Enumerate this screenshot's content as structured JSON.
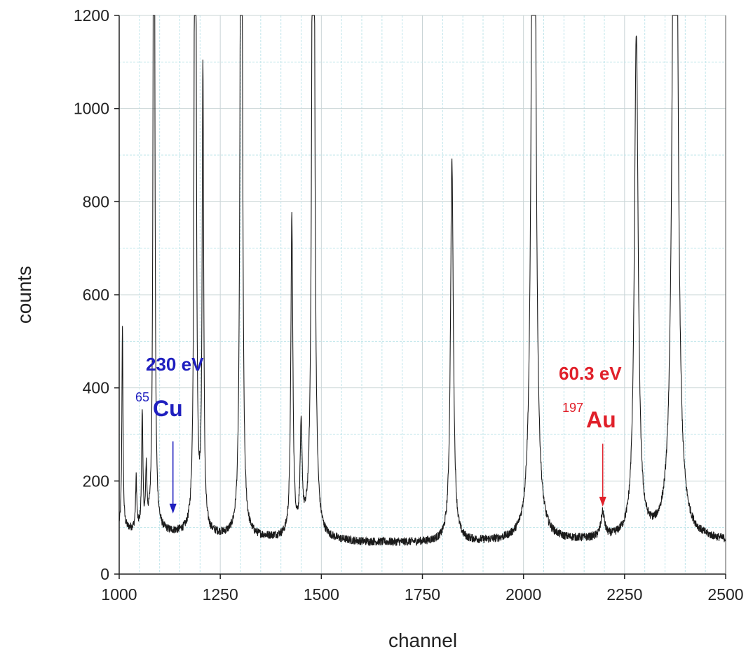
{
  "chart_data": {
    "type": "line",
    "xlabel": "channel",
    "ylabel": "counts",
    "xlim": [
      1000,
      2500
    ],
    "ylim": [
      0,
      1200
    ],
    "x_ticks": [
      1000,
      1250,
      1500,
      1750,
      2000,
      2250,
      2500
    ],
    "y_ticks": [
      0,
      200,
      400,
      600,
      800,
      1000,
      1200
    ],
    "grid": true,
    "legend": "none",
    "series": [
      {
        "color": "#1a1a1a",
        "baseline": [
          [
            1000,
            95
          ],
          [
            1100,
            88
          ],
          [
            1200,
            82
          ],
          [
            1300,
            78
          ],
          [
            1400,
            75
          ],
          [
            1500,
            72
          ],
          [
            1600,
            68
          ],
          [
            1700,
            67
          ],
          [
            1800,
            68
          ],
          [
            1900,
            68
          ],
          [
            2000,
            70
          ],
          [
            2100,
            70
          ],
          [
            2200,
            72
          ],
          [
            2300,
            75
          ],
          [
            2400,
            75
          ],
          [
            2500,
            70
          ]
        ],
        "peaks": [
          {
            "x": 1008,
            "height": 535
          },
          {
            "x": 1042,
            "height": 200
          },
          {
            "x": 1057,
            "height": 345
          },
          {
            "x": 1067,
            "height": 215
          },
          {
            "x": 1086,
            "height": 1200
          },
          {
            "x": 1188,
            "height": 1200
          },
          {
            "x": 1207,
            "height": 1070
          },
          {
            "x": 1302,
            "height": 1200
          },
          {
            "x": 1427,
            "height": 760
          },
          {
            "x": 1450,
            "height": 292
          },
          {
            "x": 1480,
            "height": 1200
          },
          {
            "x": 1823,
            "height": 885
          },
          {
            "x": 2025,
            "height": 1200
          },
          {
            "x": 2196,
            "height": 125
          },
          {
            "x": 2279,
            "height": 1150
          },
          {
            "x": 2375,
            "height": 1200
          }
        ]
      }
    ],
    "annotations": [
      {
        "energy": "230 eV",
        "mass": "65",
        "element": "Cu",
        "color": "#1f1fbf",
        "arrow_x": 1133,
        "arrow_y_from": 285,
        "arrow_y_to": 130
      },
      {
        "energy": "60.3 eV",
        "mass": "197",
        "element": "Au",
        "color": "#e0202a",
        "arrow_x": 2196,
        "arrow_y_from": 280,
        "arrow_y_to": 145
      }
    ]
  }
}
